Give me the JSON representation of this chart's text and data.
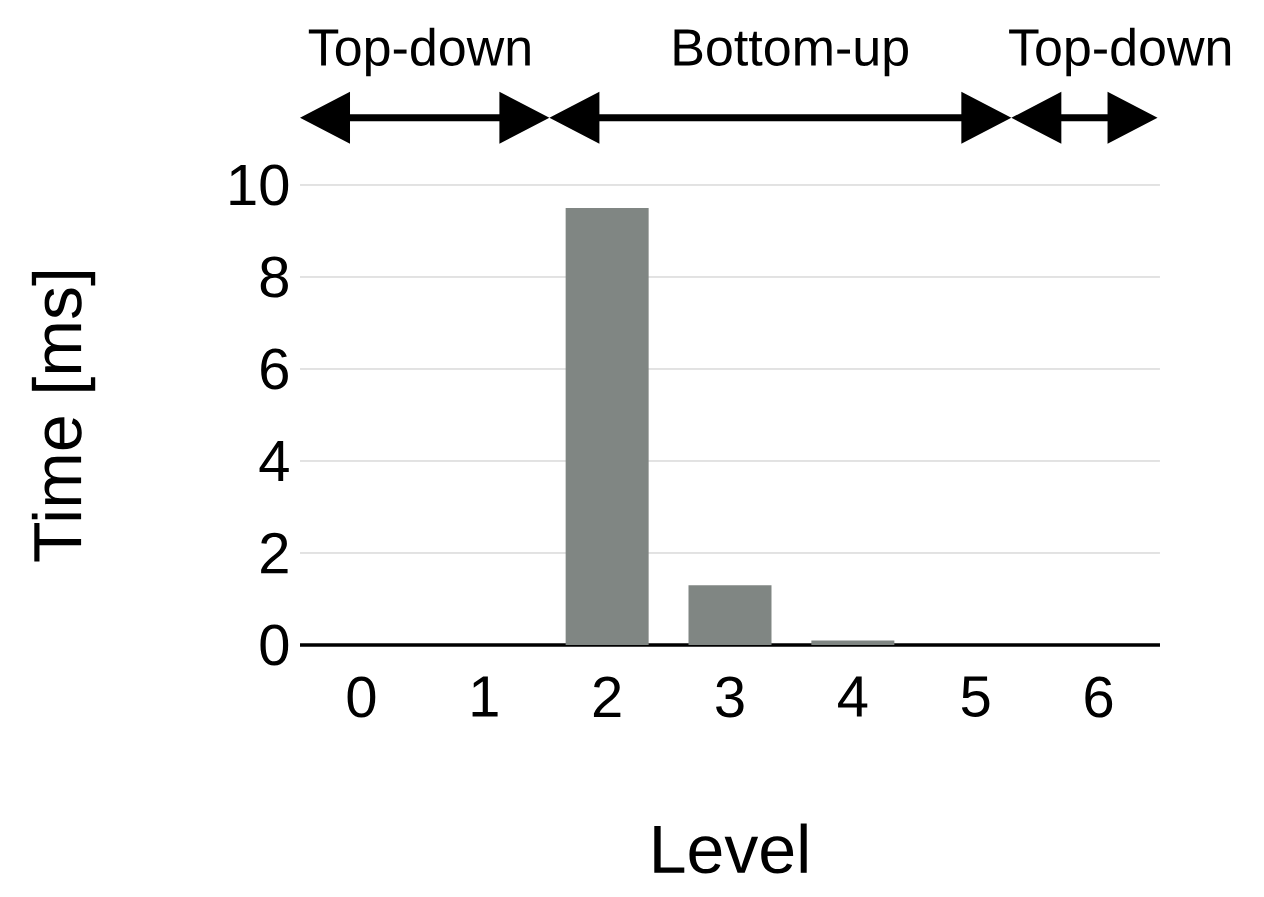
{
  "chart_data": {
    "type": "bar",
    "xlabel": "Level",
    "ylabel": "Time [ms]",
    "categories": [
      "0",
      "1",
      "2",
      "3",
      "4",
      "5",
      "6"
    ],
    "values": [
      0,
      0,
      9.5,
      1.3,
      0.1,
      0,
      0
    ],
    "color": "#808683",
    "ylim": [
      0,
      10
    ],
    "yticks": [
      0,
      2,
      4,
      6,
      8,
      10
    ],
    "grid": "y",
    "annotations": [
      "Top-down",
      "Bottom-up",
      "Top-down"
    ]
  }
}
